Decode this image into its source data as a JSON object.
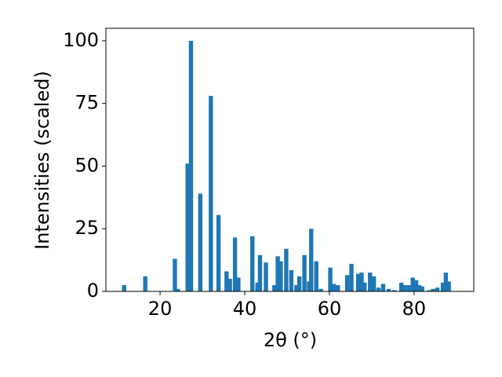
{
  "chart_data": {
    "type": "bar",
    "xlabel": "2θ (°)",
    "ylabel": "Intensities (scaled)",
    "x": [
      11.5,
      16.5,
      23.5,
      24.2,
      26.5,
      27.3,
      29.5,
      32,
      33.8,
      35.7,
      36.5,
      37.7,
      38.5,
      41.8,
      43,
      43.6,
      45,
      47,
      47.8,
      48.5,
      49.8,
      51,
      52.2,
      52.9,
      54.1,
      55.2,
      55.7,
      56.9,
      58,
      60.2,
      61,
      62,
      64.2,
      65.2,
      66.8,
      67.6,
      68.3,
      69.6,
      70.5,
      71.6,
      72.7,
      74,
      75.3,
      77,
      77.7,
      78.7,
      79.7,
      80.5,
      81.2,
      81.9,
      83.6,
      84.5,
      85.5,
      86.8,
      87.5,
      88.2
    ],
    "values": [
      2.5,
      6,
      13,
      1,
      51,
      100,
      39,
      78,
      30.5,
      8,
      5,
      21.5,
      5.5,
      22,
      3.5,
      14.5,
      11.5,
      2.5,
      14,
      12,
      17,
      8.5,
      2.5,
      6,
      14.5,
      4,
      25,
      12,
      1,
      9.5,
      3,
      2.5,
      6.5,
      11,
      7,
      7.5,
      3.5,
      7.5,
      6,
      1.5,
      3,
      1,
      0.5,
      3.5,
      2.5,
      2.5,
      5.5,
      4.5,
      2.5,
      2,
      0.5,
      1,
      1.5,
      3.5,
      7.5,
      4
    ],
    "bar_width": 1,
    "color": "#1f77b4",
    "xlim": [
      7.2,
      94.1
    ],
    "xticks": [
      20,
      40,
      60,
      80
    ],
    "ylim": [
      0,
      105
    ],
    "yticks": [
      0,
      25,
      50,
      75,
      100
    ]
  }
}
